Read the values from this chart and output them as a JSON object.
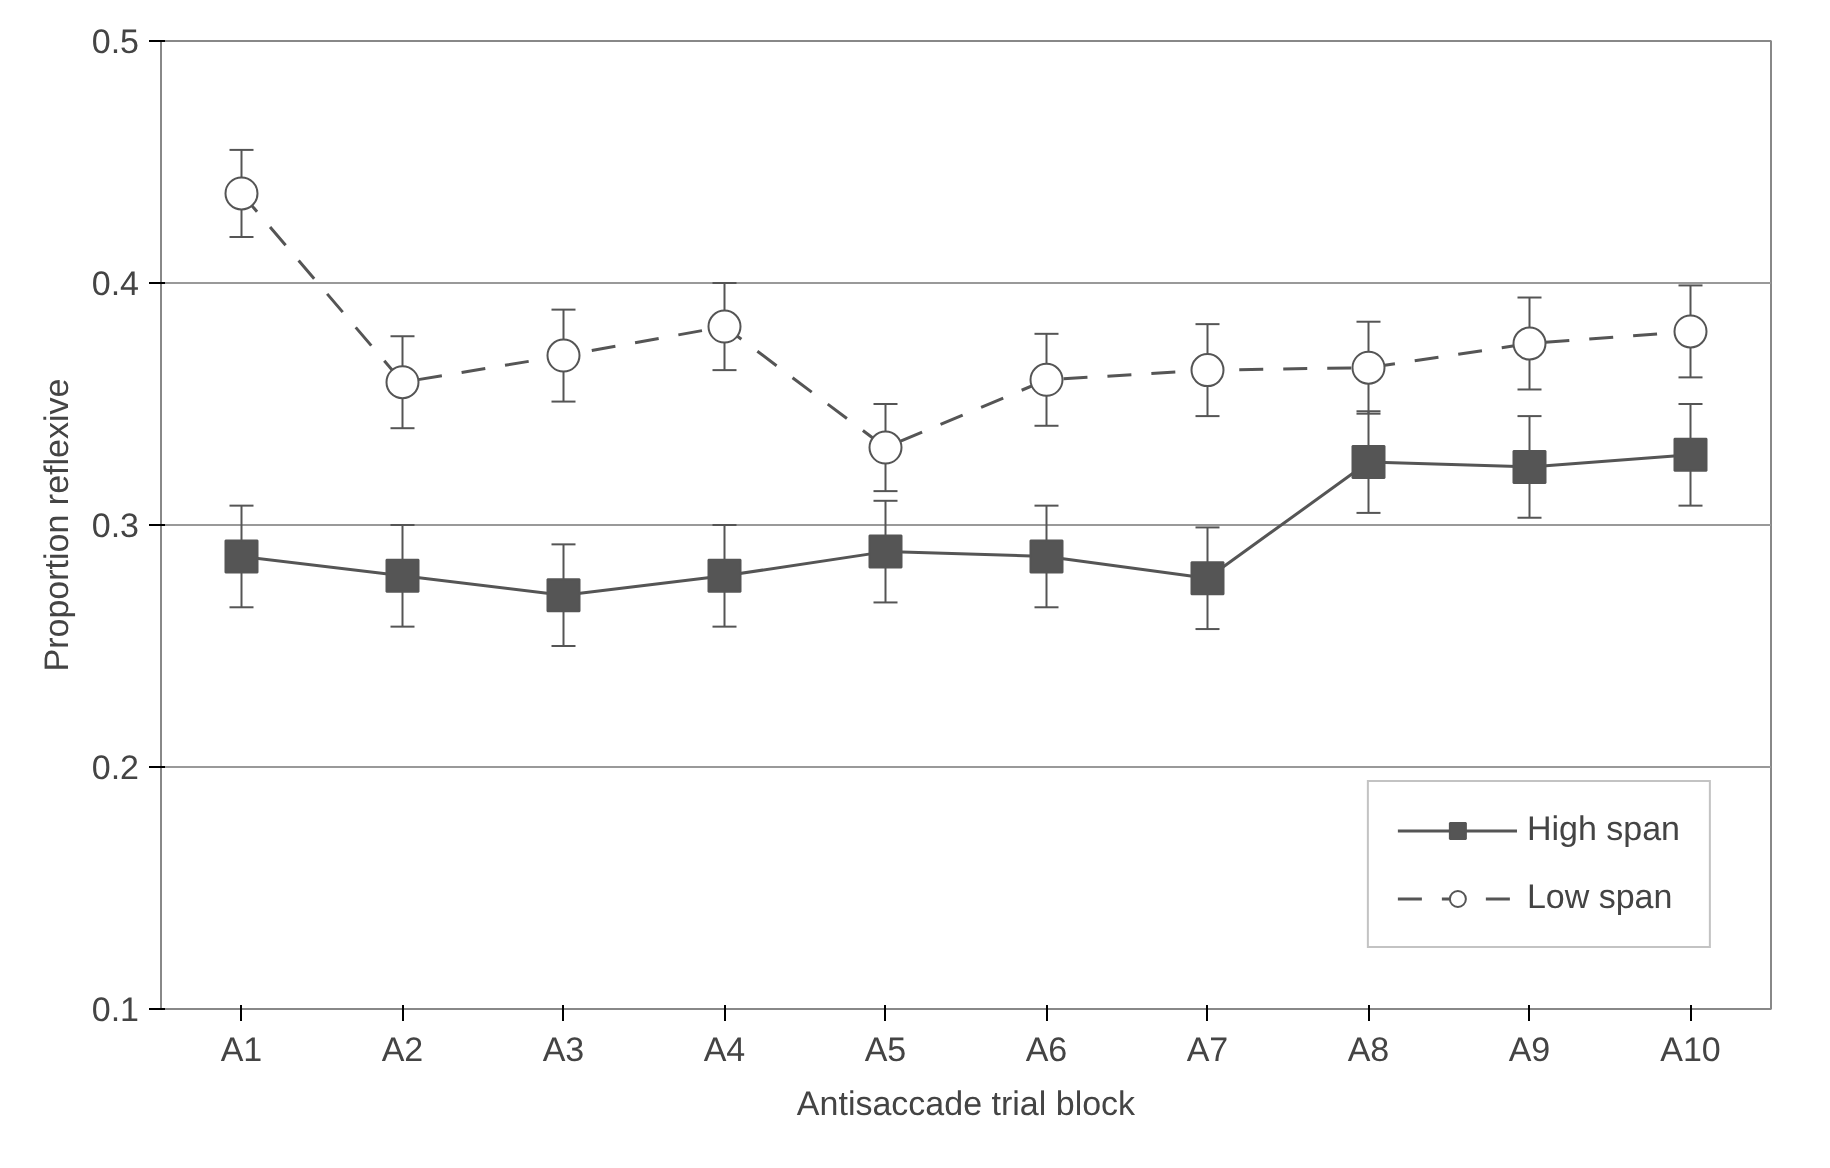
{
  "chart_data": {
    "type": "line",
    "xlabel": "Antisaccade trial block",
    "ylabel": "Proportion reflexive",
    "categories": [
      "A1",
      "A2",
      "A3",
      "A4",
      "A5",
      "A6",
      "A7",
      "A8",
      "A9",
      "A10"
    ],
    "series": [
      {
        "name": "High span",
        "color": "#555555",
        "marker": "square",
        "line_style": "solid",
        "values": [
          0.287,
          0.279,
          0.271,
          0.279,
          0.289,
          0.287,
          0.278,
          0.326,
          0.324,
          0.329
        ],
        "errors": [
          0.021,
          0.021,
          0.021,
          0.021,
          0.021,
          0.021,
          0.021,
          0.021,
          0.021,
          0.021
        ]
      },
      {
        "name": "Low span",
        "color": "#555555",
        "marker": "circle",
        "line_style": "dashed",
        "values": [
          0.437,
          0.359,
          0.37,
          0.382,
          0.332,
          0.36,
          0.364,
          0.365,
          0.375,
          0.38
        ],
        "errors": [
          0.018,
          0.019,
          0.019,
          0.018,
          0.018,
          0.019,
          0.019,
          0.019,
          0.019,
          0.019
        ]
      }
    ],
    "ylim": [
      0.1,
      0.5
    ],
    "yticks": [
      0.1,
      0.2,
      0.3,
      0.4,
      0.5
    ],
    "grid": "y",
    "legend": "bottom right"
  }
}
